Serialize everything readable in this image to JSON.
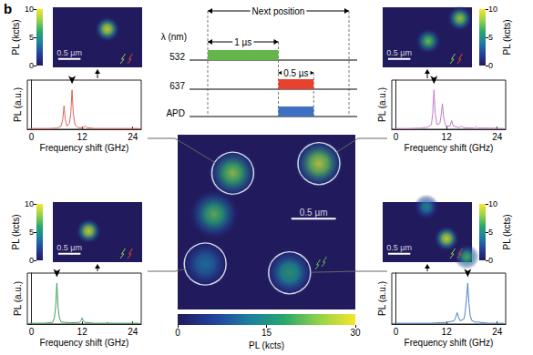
{
  "panel_label": "b",
  "timing": {
    "axis_label": "λ (nm)",
    "rows": [
      "532",
      "637",
      "APD"
    ],
    "pulses": [
      {
        "row": "532",
        "start": 0,
        "end": 1,
        "color": "#62b64a"
      },
      {
        "row": "637",
        "start": 1,
        "end": 1.5,
        "color": "#e8412e"
      },
      {
        "row": "APD",
        "start": 1,
        "end": 1.5,
        "color": "#3e6fc2"
      }
    ],
    "spans": [
      {
        "label": "Next position",
        "start": 0,
        "end": 2
      },
      {
        "label": "1 µs",
        "start": 0,
        "end": 1
      },
      {
        "label": "0.5 µs",
        "start": 1,
        "end": 1.5
      }
    ]
  },
  "chart_data": [
    {
      "type": "image",
      "xlim": [
        0,
        2
      ],
      "ylim": [
        0,
        2
      ],
      "tick_labels": false,
      "spots": [
        {
          "x": 0.62,
          "y": 1.56,
          "value": 25,
          "circled": true
        },
        {
          "x": 1.59,
          "y": 1.67,
          "value": 28,
          "circled": true
        },
        {
          "x": 0.41,
          "y": 1.09,
          "value": 22,
          "circled": false
        },
        {
          "x": 0.31,
          "y": 0.52,
          "value": 12,
          "circled": true
        },
        {
          "x": 1.26,
          "y": 0.42,
          "value": 18,
          "circled": true
        }
      ],
      "color_range": [
        0,
        30
      ],
      "color_ticks": [
        0,
        15,
        30
      ],
      "colorbar_label": "PL (kcts)",
      "scale_bar": {
        "length": 0.5,
        "label": "0.5 µm"
      }
    },
    {
      "type": "image",
      "xlim": [
        0,
        2
      ],
      "ylim": [
        0,
        1.35
      ],
      "tick_labels": false,
      "spots": [
        {
          "x": 1.22,
          "y": 0.86,
          "value": 10,
          "circled": false
        }
      ],
      "color_range": [
        0,
        10
      ],
      "color_ticks": [
        0,
        5,
        10
      ],
      "colorbar_label": "PL (kcts)",
      "scale_bar": {
        "length": 0.5,
        "label": "0.5 µm"
      }
    },
    {
      "type": "line",
      "x_label": "Frequency shift (GHz)",
      "y_label": "PL (a.u.)",
      "color": "#e0625c",
      "x": [
        -0.5,
        2,
        4,
        6,
        7.0,
        7.4,
        7.7,
        8.0,
        8.4,
        9.0,
        9.3,
        9.6,
        9.9,
        10.3,
        11,
        12.2,
        12.7,
        13.2,
        15,
        18,
        21,
        25.5
      ],
      "values": [
        0.02,
        0.02,
        0.02,
        0.03,
        0.08,
        0.25,
        0.6,
        0.25,
        0.08,
        0.15,
        0.4,
        1.0,
        0.4,
        0.12,
        0.04,
        0.04,
        0.08,
        0.04,
        0.02,
        0.02,
        0.02,
        0.02
      ],
      "xlim": [
        -1,
        26
      ],
      "xticks": [
        0,
        12,
        24
      ],
      "ylim": [
        0,
        1.25
      ],
      "tick_labels": "x",
      "arrow": [
        9.6,
        1.15
      ]
    },
    {
      "type": "image",
      "xlim": [
        0,
        2
      ],
      "ylim": [
        0,
        1.35
      ],
      "tick_labels": false,
      "spots": [
        {
          "x": 1.73,
          "y": 1.1,
          "value": 9,
          "circled": false
        },
        {
          "x": 1.02,
          "y": 0.59,
          "value": 8,
          "circled": false
        }
      ],
      "color_range": [
        0,
        10
      ],
      "color_ticks": [
        0,
        5,
        10
      ],
      "colorbar_label": "PL (kcts)",
      "scale_bar": {
        "length": 0.5,
        "label": "0.5 µm"
      }
    },
    {
      "type": "line",
      "x_label": "Frequency shift (GHz)",
      "y_label": "PL (a.u.)",
      "color": "#c478c8",
      "x": [
        -0.5,
        3,
        6,
        7.5,
        8.4,
        8.7,
        9.0,
        9.3,
        9.7,
        10.4,
        10.7,
        11.0,
        11.3,
        11.8,
        12.8,
        13.2,
        13.6,
        15.0,
        15.5,
        16.0,
        18.6,
        19.0,
        19.4,
        22,
        25.5
      ],
      "values": [
        0.02,
        0.02,
        0.03,
        0.05,
        0.12,
        0.4,
        1.0,
        0.4,
        0.12,
        0.15,
        0.35,
        0.65,
        0.3,
        0.08,
        0.08,
        0.22,
        0.08,
        0.04,
        0.08,
        0.04,
        0.03,
        0.06,
        0.03,
        0.03,
        0.02
      ],
      "xlim": [
        -1,
        26
      ],
      "xticks": [
        0,
        12,
        24
      ],
      "ylim": [
        0,
        1.25
      ],
      "tick_labels": "x",
      "arrow": [
        9.0,
        1.15
      ]
    },
    {
      "type": "image",
      "xlim": [
        0,
        2
      ],
      "ylim": [
        0,
        1.35
      ],
      "tick_labels": false,
      "spots": [
        {
          "x": 0.8,
          "y": 0.7,
          "value": 10,
          "circled": false
        }
      ],
      "color_range": [
        0,
        10
      ],
      "color_ticks": [
        0,
        5,
        10
      ],
      "colorbar_label": "PL (kcts)",
      "scale_bar": {
        "length": 0.5,
        "label": "0.5 µm"
      }
    },
    {
      "type": "line",
      "x_label": "Frequency shift (GHz)",
      "y_label": "PL (a.u.)",
      "color": "#3f9e5a",
      "x": [
        -0.5,
        3,
        5.0,
        5.4,
        5.7,
        6.0,
        6.3,
        6.6,
        7.0,
        9,
        11.4,
        11.7,
        12.0,
        12.3,
        12.6,
        15,
        17.7,
        18,
        18.3,
        21,
        25.5
      ],
      "values": [
        0.02,
        0.02,
        0.04,
        0.15,
        0.4,
        1.0,
        0.4,
        0.15,
        0.05,
        0.03,
        0.04,
        0.08,
        0.15,
        0.08,
        0.04,
        0.02,
        0.02,
        0.04,
        0.02,
        0.02,
        0.02
      ],
      "xlim": [
        -1,
        26
      ],
      "xticks": [
        0,
        12,
        24
      ],
      "ylim": [
        0,
        1.25
      ],
      "tick_labels": "x",
      "arrow": [
        6.0,
        1.15
      ]
    },
    {
      "type": "image",
      "xlim": [
        0,
        2
      ],
      "ylim": [
        0,
        1.35
      ],
      "tick_labels": false,
      "spots": [
        {
          "x": 0.98,
          "y": 1.24,
          "value": 5,
          "circled": false
        },
        {
          "x": 1.43,
          "y": 0.53,
          "value": 10,
          "circled": false
        },
        {
          "x": 1.88,
          "y": 0.12,
          "value": 7,
          "circled": false
        }
      ],
      "color_range": [
        0,
        10
      ],
      "color_ticks": [
        0,
        5,
        10
      ],
      "colorbar_label": "PL (kcts)",
      "scale_bar": {
        "length": 0.5,
        "label": "0.5 µm"
      }
    },
    {
      "type": "line",
      "x_label": "Frequency shift (GHz)",
      "y_label": "PL (a.u.)",
      "color": "#4f7fc4",
      "x": [
        -0.5,
        4,
        8,
        12,
        13.8,
        14.2,
        14.5,
        14.8,
        15.2,
        16.1,
        16.4,
        16.7,
        17.0,
        17.3,
        17.6,
        18.0,
        19.2,
        19.5,
        19.8,
        22,
        25.5
      ],
      "values": [
        0.02,
        0.02,
        0.02,
        0.04,
        0.08,
        0.18,
        0.28,
        0.18,
        0.08,
        0.12,
        0.3,
        0.6,
        1.0,
        0.5,
        0.2,
        0.08,
        0.04,
        0.06,
        0.04,
        0.02,
        0.02
      ],
      "xlim": [
        -1,
        26
      ],
      "xticks": [
        0,
        12,
        24
      ],
      "ylim": [
        0,
        1.25
      ],
      "tick_labels": "x",
      "arrow": [
        17.0,
        1.15
      ]
    }
  ]
}
